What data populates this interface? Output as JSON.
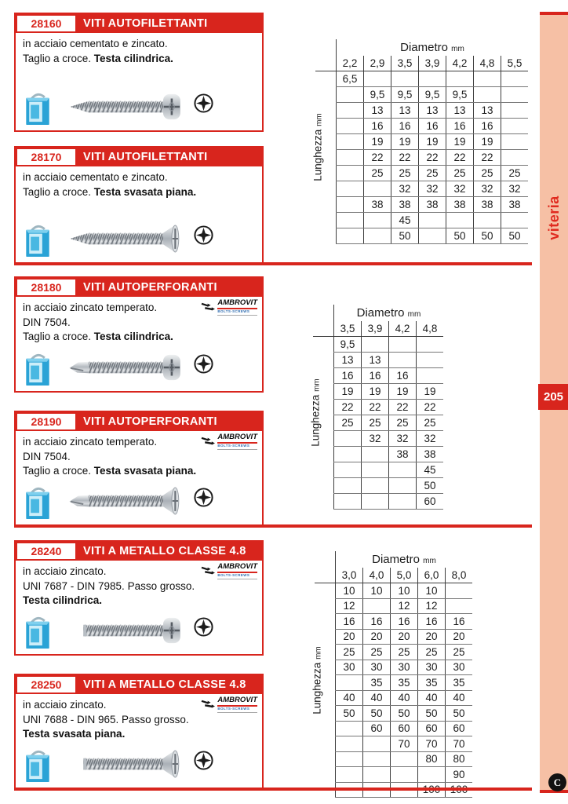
{
  "sidebar": {
    "label": "viteria",
    "page": "205"
  },
  "footer": {
    "logo_letter": "C"
  },
  "colors": {
    "red": "#d8251d",
    "salmon": "#f6c0a5",
    "viteria_text": "#e02a1f"
  },
  "ambrovit": {
    "name": "AMBROVIT",
    "tagline": "BOLTS-SCREWS"
  },
  "table_header": {
    "diametro": "Diametro",
    "lunghezza": "Lunghezza",
    "unit": "mm"
  },
  "products": [
    {
      "code": "28160",
      "title": "VITI AUTOFILETTANTI",
      "ambrovit": false,
      "screw_style": "point-pan",
      "lines": [
        {
          "plain": "in acciaio cementato e zincato.",
          "bold": ""
        },
        {
          "plain": "Taglio a croce. ",
          "bold": "Testa cilindrica."
        }
      ]
    },
    {
      "code": "28170",
      "title": "VITI AUTOFILETTANTI",
      "ambrovit": false,
      "screw_style": "point-csk",
      "lines": [
        {
          "plain": "in acciaio cementato e zincato.",
          "bold": ""
        },
        {
          "plain": "Taglio a croce. ",
          "bold": "Testa svasata piana."
        }
      ]
    },
    {
      "code": "28180",
      "title": "VITI AUTOPERFORANTI",
      "ambrovit": true,
      "screw_style": "drill-pan",
      "lines": [
        {
          "plain": "in acciaio zincato temperato.",
          "bold": ""
        },
        {
          "plain": "DIN 7504.",
          "bold": ""
        },
        {
          "plain": "Taglio a croce. ",
          "bold": "Testa cilindrica."
        }
      ]
    },
    {
      "code": "28190",
      "title": "VITI AUTOPERFORANTI",
      "ambrovit": true,
      "screw_style": "drill-csk",
      "lines": [
        {
          "plain": "in acciaio zincato temperato.",
          "bold": ""
        },
        {
          "plain": "DIN 7504.",
          "bold": ""
        },
        {
          "plain": "Taglio a croce. ",
          "bold": "Testa svasata piana."
        }
      ]
    },
    {
      "code": "28240",
      "title": "VITI A METALLO CLASSE 4.8",
      "ambrovit": true,
      "screw_style": "flat-pan",
      "lines": [
        {
          "plain": "in acciaio zincato.",
          "bold": ""
        },
        {
          "plain": "UNI 7687 - DIN 7985. Passo grosso.",
          "bold": ""
        },
        {
          "plain": "",
          "bold": "Testa cilindrica."
        }
      ]
    },
    {
      "code": "28250",
      "title": "VITI A METALLO CLASSE 4.8",
      "ambrovit": true,
      "screw_style": "flat-csk",
      "lines": [
        {
          "plain": "in acciaio zincato.",
          "bold": ""
        },
        {
          "plain": "UNI 7688 - DIN 965. Passo grosso.",
          "bold": ""
        },
        {
          "plain": "",
          "bold": "Testa svasata piana."
        }
      ]
    }
  ],
  "tables": [
    {
      "columns": [
        "2,2",
        "2,9",
        "3,5",
        "3,9",
        "4,2",
        "4,8",
        "5,5"
      ],
      "rows": [
        [
          "6,5",
          "",
          "",
          "",
          "",
          "",
          ""
        ],
        [
          "",
          "9,5",
          "9,5",
          "9,5",
          "9,5",
          "",
          ""
        ],
        [
          "",
          "13",
          "13",
          "13",
          "13",
          "13",
          ""
        ],
        [
          "",
          "16",
          "16",
          "16",
          "16",
          "16",
          ""
        ],
        [
          "",
          "19",
          "19",
          "19",
          "19",
          "19",
          ""
        ],
        [
          "",
          "22",
          "22",
          "22",
          "22",
          "22",
          ""
        ],
        [
          "",
          "25",
          "25",
          "25",
          "25",
          "25",
          "25"
        ],
        [
          "",
          "",
          "32",
          "32",
          "32",
          "32",
          "32"
        ],
        [
          "",
          "38",
          "38",
          "38",
          "38",
          "38",
          "38"
        ],
        [
          "",
          "",
          "45",
          "",
          "",
          "",
          ""
        ],
        [
          "",
          "",
          "50",
          "",
          "50",
          "50",
          "50"
        ]
      ]
    },
    {
      "columns": [
        "3,5",
        "3,9",
        "4,2",
        "4,8"
      ],
      "rows": [
        [
          "9,5",
          "",
          "",
          ""
        ],
        [
          "13",
          "13",
          "",
          ""
        ],
        [
          "16",
          "16",
          "16",
          ""
        ],
        [
          "19",
          "19",
          "19",
          "19"
        ],
        [
          "22",
          "22",
          "22",
          "22"
        ],
        [
          "25",
          "25",
          "25",
          "25"
        ],
        [
          "",
          "32",
          "32",
          "32"
        ],
        [
          "",
          "",
          "38",
          "38"
        ],
        [
          "",
          "",
          "",
          "45"
        ],
        [
          "",
          "",
          "",
          "50"
        ],
        [
          "",
          "",
          "",
          "60"
        ]
      ]
    },
    {
      "columns": [
        "3,0",
        "4,0",
        "5,0",
        "6,0",
        "8,0"
      ],
      "rows": [
        [
          "10",
          "10",
          "10",
          "10",
          ""
        ],
        [
          "12",
          "",
          "12",
          "12",
          ""
        ],
        [
          "16",
          "16",
          "16",
          "16",
          "16"
        ],
        [
          "20",
          "20",
          "20",
          "20",
          "20"
        ],
        [
          "25",
          "25",
          "25",
          "25",
          "25"
        ],
        [
          "30",
          "30",
          "30",
          "30",
          "30"
        ],
        [
          "",
          "35",
          "35",
          "35",
          "35"
        ],
        [
          "40",
          "40",
          "40",
          "40",
          "40"
        ],
        [
          "50",
          "50",
          "50",
          "50",
          "50"
        ],
        [
          "",
          "60",
          "60",
          "60",
          "60"
        ],
        [
          "",
          "",
          "70",
          "70",
          "70"
        ],
        [
          "",
          "",
          "",
          "80",
          "80"
        ],
        [
          "",
          "",
          "",
          "",
          "90"
        ],
        [
          "",
          "",
          "",
          "100",
          "100"
        ]
      ]
    }
  ]
}
